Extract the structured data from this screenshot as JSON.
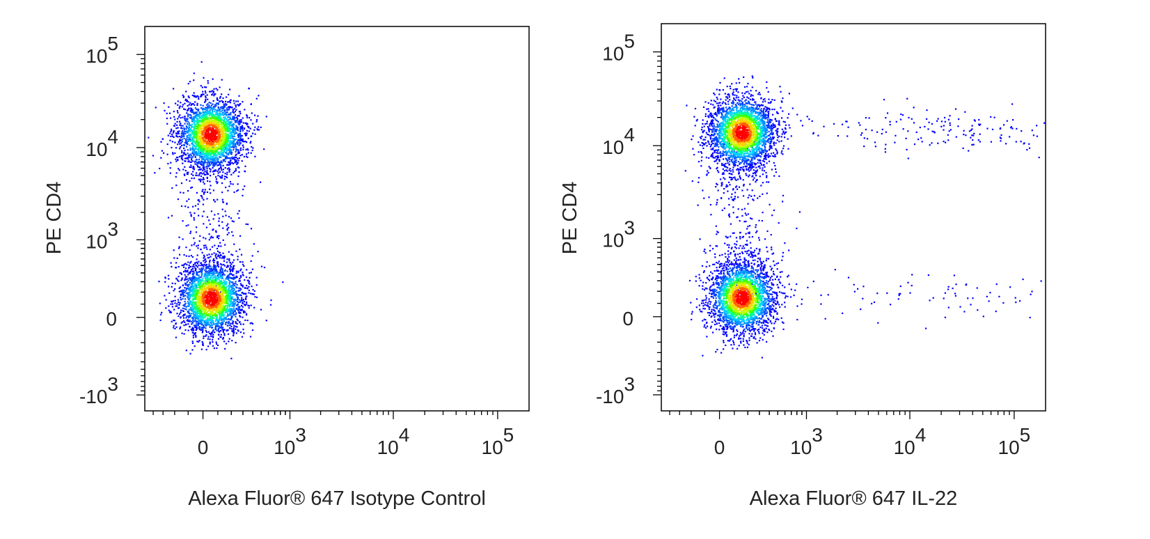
{
  "chart_data": [
    {
      "type": "scatter",
      "subtype": "flow-cytometry-density-dot-plot",
      "xlabel": "Alexa Fluor® 647 Isotype Control",
      "ylabel": "PE CD4",
      "x_scale": "biexponential",
      "y_scale": "biexponential",
      "x_ticks": [
        "0",
        "10^3",
        "10^4",
        "10^5"
      ],
      "y_ticks": [
        "-10^3",
        "0",
        "10^3",
        "10^4",
        "10^5"
      ],
      "xlim": [
        -500,
        200000
      ],
      "ylim": [
        -1500,
        200000
      ],
      "grid": false,
      "color_scale": [
        "#0000ff",
        "#00c8ff",
        "#00ff60",
        "#ffff00",
        "#ff0000"
      ],
      "populations": [
        {
          "label": "CD4+",
          "x_center": 50,
          "y_center": 14000,
          "relative_count": 1.0
        },
        {
          "label": "CD4-",
          "x_center": 50,
          "y_center": 150,
          "relative_count": 1.0
        }
      ]
    },
    {
      "type": "scatter",
      "subtype": "flow-cytometry-density-dot-plot",
      "xlabel": "Alexa Fluor® 647 IL-22",
      "ylabel": "PE CD4",
      "x_scale": "biexponential",
      "y_scale": "biexponential",
      "x_ticks": [
        "0",
        "10^3",
        "10^4",
        "10^5"
      ],
      "y_ticks": [
        "-10^3",
        "0",
        "10^3",
        "10^4",
        "10^5"
      ],
      "xlim": [
        -500,
        200000
      ],
      "ylim": [
        -1500,
        200000
      ],
      "grid": false,
      "color_scale": [
        "#0000ff",
        "#00c8ff",
        "#00ff60",
        "#ffff00",
        "#ff0000"
      ],
      "populations": [
        {
          "label": "CD4+ IL-22-",
          "x_center": 150,
          "y_center": 14000,
          "relative_count": 1.0
        },
        {
          "label": "CD4- IL-22-",
          "x_center": 150,
          "y_center": 150,
          "relative_count": 1.0
        },
        {
          "label": "CD4+ IL-22+",
          "x_center": 20000,
          "y_center": 15000,
          "relative_count": 0.05
        },
        {
          "label": "CD4- IL-22+",
          "x_center": 10000,
          "y_center": 150,
          "relative_count": 0.01
        }
      ]
    }
  ]
}
